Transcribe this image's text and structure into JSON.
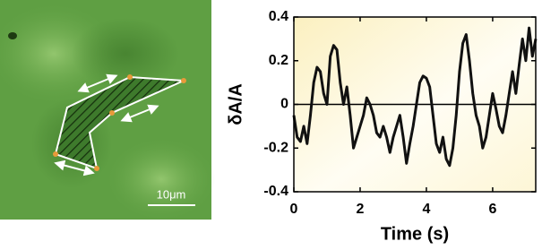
{
  "image": {
    "scale_bar_label": "10μm"
  },
  "chart_data": {
    "type": "line",
    "xlabel": "Time (s)",
    "ylabel": "δA/A",
    "x": [
      0,
      0.1,
      0.2,
      0.3,
      0.4,
      0.5,
      0.6,
      0.7,
      0.8,
      0.9,
      1.0,
      1.1,
      1.2,
      1.3,
      1.4,
      1.5,
      1.6,
      1.7,
      1.8,
      1.9,
      2.0,
      2.1,
      2.2,
      2.3,
      2.4,
      2.5,
      2.6,
      2.7,
      2.8,
      2.9,
      3.0,
      3.1,
      3.2,
      3.3,
      3.4,
      3.5,
      3.6,
      3.7,
      3.8,
      3.9,
      4.0,
      4.1,
      4.2,
      4.3,
      4.4,
      4.5,
      4.6,
      4.7,
      4.8,
      4.9,
      5.0,
      5.1,
      5.2,
      5.3,
      5.4,
      5.5,
      5.6,
      5.7,
      5.8,
      5.9,
      6.0,
      6.1,
      6.2,
      6.3,
      6.4,
      6.5,
      6.6,
      6.7,
      6.8,
      6.9,
      7.0,
      7.1,
      7.2,
      7.3
    ],
    "series": [
      {
        "name": "δA/A",
        "color": "#111111",
        "values": [
          -0.05,
          -0.15,
          -0.17,
          -0.1,
          -0.18,
          -0.05,
          0.1,
          0.17,
          0.15,
          0.05,
          0.0,
          0.22,
          0.27,
          0.25,
          0.1,
          0.0,
          0.08,
          -0.05,
          -0.2,
          -0.15,
          -0.1,
          -0.05,
          0.03,
          0.0,
          -0.05,
          -0.13,
          -0.15,
          -0.1,
          -0.15,
          -0.22,
          -0.15,
          -0.1,
          -0.05,
          -0.15,
          -0.27,
          -0.18,
          -0.1,
          0.0,
          0.1,
          0.13,
          0.12,
          0.08,
          -0.05,
          -0.18,
          -0.22,
          -0.15,
          -0.25,
          -0.28,
          -0.2,
          -0.05,
          0.15,
          0.28,
          0.32,
          0.2,
          0.05,
          -0.05,
          -0.1,
          -0.2,
          -0.15,
          -0.05,
          0.05,
          -0.02,
          -0.1,
          -0.13,
          -0.05,
          0.05,
          0.15,
          0.05,
          0.18,
          0.3,
          0.2,
          0.35,
          0.22,
          0.3
        ]
      }
    ],
    "xlim": [
      0,
      7.3
    ],
    "ylim": [
      -0.4,
      0.4
    ],
    "xticks": [
      0,
      2,
      4,
      6
    ],
    "yticks": [
      -0.4,
      -0.2,
      0,
      0.2,
      0.4
    ],
    "zero_line": true
  }
}
